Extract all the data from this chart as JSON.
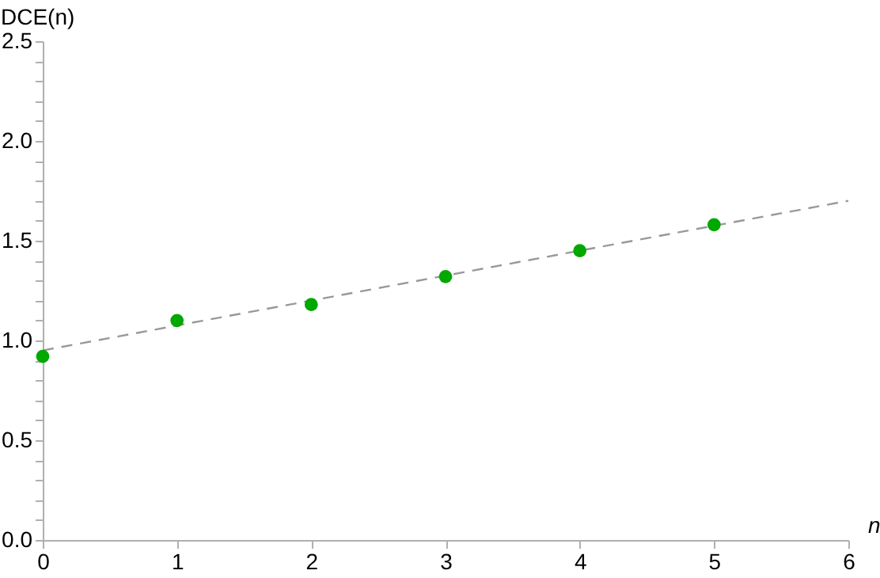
{
  "chart_data": {
    "type": "scatter",
    "xlabel": "n",
    "ylabel": "DCE(n)",
    "x": [
      0,
      1,
      2,
      3,
      4,
      5
    ],
    "series": [
      {
        "type": "scatter",
        "color": "#00a800",
        "marker": "circle",
        "values": [
          0.92,
          1.1,
          1.18,
          1.32,
          1.45,
          1.58
        ]
      },
      {
        "type": "line",
        "color": "#999999",
        "line_style": "dashed",
        "x": [
          0,
          6
        ],
        "values": [
          0.95,
          1.7
        ]
      }
    ],
    "xlim": [
      0,
      6
    ],
    "xticks": [
      0,
      1,
      2,
      3,
      4,
      5,
      6
    ],
    "ylim": [
      0,
      2.5
    ],
    "yticks": [
      {
        "value": 0,
        "label": "0.0"
      },
      {
        "value": 0.1,
        "label": null
      },
      {
        "value": 0.2,
        "label": null
      },
      {
        "value": 0.3,
        "label": null
      },
      {
        "value": 0.4,
        "label": null
      },
      {
        "value": 0.5,
        "label": "0.5"
      },
      {
        "value": 0.6,
        "label": null
      },
      {
        "value": 0.7,
        "label": null
      },
      {
        "value": 0.8,
        "label": null
      },
      {
        "value": 0.9,
        "label": null
      },
      {
        "value": 1.0,
        "label": "1.0"
      },
      {
        "value": 1.1,
        "label": null
      },
      {
        "value": 1.2,
        "label": null
      },
      {
        "value": 1.3,
        "label": null
      },
      {
        "value": 1.4,
        "label": null
      },
      {
        "value": 1.5,
        "label": "1.5"
      },
      {
        "value": 1.6,
        "label": null
      },
      {
        "value": 1.7,
        "label": null
      },
      {
        "value": 1.8,
        "label": null
      },
      {
        "value": 1.9,
        "label": null
      },
      {
        "value": 2.0,
        "label": "2.0"
      },
      {
        "value": 2.1,
        "label": null
      },
      {
        "value": 2.2,
        "label": null
      },
      {
        "value": 2.3,
        "label": null
      },
      {
        "value": 2.4,
        "label": null
      },
      {
        "value": 2.5,
        "label": "2.5"
      }
    ],
    "grid": false
  }
}
